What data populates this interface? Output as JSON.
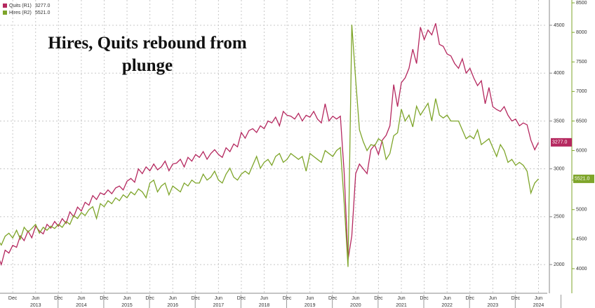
{
  "chart_data": {
    "type": "line",
    "title": "Hires, Quits rebound from plunge",
    "x": [
      "2012-07",
      "2012-08",
      "2012-09",
      "2012-10",
      "2012-11",
      "2012-12",
      "2013-01",
      "2013-02",
      "2013-03",
      "2013-04",
      "2013-05",
      "2013-06",
      "2013-07",
      "2013-08",
      "2013-09",
      "2013-10",
      "2013-11",
      "2013-12",
      "2014-01",
      "2014-02",
      "2014-03",
      "2014-04",
      "2014-05",
      "2014-06",
      "2014-07",
      "2014-08",
      "2014-09",
      "2014-10",
      "2014-11",
      "2014-12",
      "2015-01",
      "2015-02",
      "2015-03",
      "2015-04",
      "2015-05",
      "2015-06",
      "2015-07",
      "2015-08",
      "2015-09",
      "2015-10",
      "2015-11",
      "2015-12",
      "2016-01",
      "2016-02",
      "2016-03",
      "2016-04",
      "2016-05",
      "2016-06",
      "2016-07",
      "2016-08",
      "2016-09",
      "2016-10",
      "2016-11",
      "2016-12",
      "2017-01",
      "2017-02",
      "2017-03",
      "2017-04",
      "2017-05",
      "2017-06",
      "2017-07",
      "2017-08",
      "2017-09",
      "2017-10",
      "2017-11",
      "2017-12",
      "2018-01",
      "2018-02",
      "2018-03",
      "2018-04",
      "2018-05",
      "2018-06",
      "2018-07",
      "2018-08",
      "2018-09",
      "2018-10",
      "2018-11",
      "2018-12",
      "2019-01",
      "2019-02",
      "2019-03",
      "2019-04",
      "2019-05",
      "2019-06",
      "2019-07",
      "2019-08",
      "2019-09",
      "2019-10",
      "2019-11",
      "2019-12",
      "2020-01",
      "2020-02",
      "2020-03",
      "2020-04",
      "2020-05",
      "2020-06",
      "2020-07",
      "2020-08",
      "2020-09",
      "2020-10",
      "2020-11",
      "2020-12",
      "2021-01",
      "2021-02",
      "2021-03",
      "2021-04",
      "2021-05",
      "2021-06",
      "2021-07",
      "2021-08",
      "2021-09",
      "2021-10",
      "2021-11",
      "2021-12",
      "2022-01",
      "2022-02",
      "2022-03",
      "2022-04",
      "2022-05",
      "2022-06",
      "2022-07",
      "2022-08",
      "2022-09",
      "2022-10",
      "2022-11",
      "2022-12",
      "2023-01",
      "2023-02",
      "2023-03",
      "2023-04",
      "2023-05",
      "2023-06",
      "2023-07",
      "2023-08",
      "2023-09",
      "2023-10",
      "2023-11",
      "2023-12",
      "2024-01",
      "2024-02",
      "2024-03",
      "2024-04",
      "2024-05",
      "2024-06"
    ],
    "series": [
      {
        "name": "Quits (R1)",
        "color": "#b5285f",
        "last_label": "3277.0",
        "values": [
          2050,
          2100,
          2000,
          2150,
          2120,
          2200,
          2180,
          2300,
          2250,
          2350,
          2280,
          2400,
          2350,
          2320,
          2420,
          2380,
          2450,
          2400,
          2480,
          2430,
          2550,
          2500,
          2600,
          2560,
          2650,
          2620,
          2720,
          2680,
          2750,
          2730,
          2780,
          2740,
          2800,
          2820,
          2780,
          2870,
          2900,
          2860,
          3000,
          2950,
          3020,
          2980,
          3050,
          2990,
          3020,
          3080,
          2980,
          3050,
          3060,
          3100,
          3020,
          3120,
          3080,
          3150,
          3120,
          3180,
          3100,
          3160,
          3200,
          3150,
          3120,
          3220,
          3180,
          3260,
          3230,
          3380,
          3320,
          3400,
          3420,
          3380,
          3450,
          3420,
          3500,
          3480,
          3540,
          3450,
          3600,
          3560,
          3550,
          3520,
          3580,
          3500,
          3560,
          3540,
          3600,
          3520,
          3480,
          3680,
          3500,
          3550,
          3520,
          3550,
          2950,
          2050,
          2300,
          2950,
          3050,
          3000,
          2950,
          3200,
          3250,
          3150,
          3300,
          3350,
          3450,
          3880,
          3650,
          3900,
          3950,
          4050,
          4250,
          4100,
          4480,
          4350,
          4450,
          4400,
          4520,
          4300,
          4280,
          4200,
          4180,
          4100,
          4050,
          4150,
          4000,
          4050,
          3950,
          3870,
          3920,
          3680,
          3850,
          3650,
          3620,
          3600,
          3650,
          3560,
          3500,
          3520,
          3450,
          3480,
          3460,
          3300,
          3200,
          3277
        ]
      },
      {
        "name": "Hires (R2)",
        "color": "#7ea52a",
        "axis": "y2",
        "last_label": "5521.0",
        "values": [
          4450,
          4500,
          4400,
          4550,
          4600,
          4520,
          4650,
          4500,
          4700,
          4620,
          4680,
          4750,
          4600,
          4700,
          4650,
          4720,
          4680,
          4750,
          4700,
          4800,
          4750,
          4900,
          4850,
          4950,
          4900,
          5000,
          5050,
          4850,
          5100,
          5050,
          5150,
          5100,
          5200,
          5150,
          5250,
          5200,
          5300,
          5250,
          5350,
          5300,
          5200,
          5450,
          5500,
          5300,
          5400,
          5450,
          5250,
          5400,
          5350,
          5300,
          5450,
          5400,
          5500,
          5450,
          5450,
          5600,
          5500,
          5550,
          5650,
          5500,
          5450,
          5600,
          5700,
          5550,
          5500,
          5600,
          5650,
          5600,
          5750,
          5900,
          5700,
          5800,
          5850,
          5750,
          5900,
          5950,
          5800,
          5850,
          5950,
          5900,
          5850,
          5900,
          5650,
          5950,
          5900,
          5850,
          5800,
          6000,
          5950,
          5900,
          6000,
          6050,
          5100,
          4030,
          8130,
          7200,
          6350,
          6150,
          6000,
          6100,
          6080,
          6200,
          6150,
          5850,
          5950,
          6250,
          6300,
          6700,
          6500,
          6600,
          6400,
          6750,
          6600,
          6700,
          6800,
          6500,
          6880,
          6600,
          6550,
          6600,
          6500,
          6500,
          6500,
          6350,
          6200,
          6250,
          6200,
          6350,
          6100,
          6150,
          6200,
          6050,
          5900,
          6100,
          6000,
          5800,
          5850,
          5750,
          5800,
          5750,
          5650,
          5280,
          5450,
          5521
        ]
      }
    ],
    "ylim": [
      1700,
      4764
    ],
    "yticks": [
      2000,
      2500,
      3000,
      3500,
      4000,
      4500
    ],
    "y2lim": [
      3584,
      8548
    ],
    "y2ticks": [
      4000,
      4500,
      5000,
      5500,
      6000,
      6500,
      7000,
      7500,
      8000,
      8500
    ],
    "xticks": [
      {
        "value": "2012-12",
        "label": "Dec"
      },
      {
        "value": "2013-06",
        "label": "Jun"
      },
      {
        "value": "2013-12",
        "label": "Dec"
      },
      {
        "value": "2014-06",
        "label": "Jun"
      },
      {
        "value": "2014-12",
        "label": "Dec"
      },
      {
        "value": "2015-06",
        "label": "Jun"
      },
      {
        "value": "2015-12",
        "label": "Dec"
      },
      {
        "value": "2016-06",
        "label": "Jun"
      },
      {
        "value": "2016-12",
        "label": "Dec"
      },
      {
        "value": "2017-06",
        "label": "Jun"
      },
      {
        "value": "2017-12",
        "label": "Dec"
      },
      {
        "value": "2018-06",
        "label": "Jun"
      },
      {
        "value": "2018-12",
        "label": "Dec"
      },
      {
        "value": "2019-06",
        "label": "Jun"
      },
      {
        "value": "2019-12",
        "label": "Dec"
      },
      {
        "value": "2020-06",
        "label": "Jun"
      },
      {
        "value": "2020-12",
        "label": "Dec"
      },
      {
        "value": "2021-06",
        "label": "Jun"
      },
      {
        "value": "2021-12",
        "label": "Dec"
      },
      {
        "value": "2022-06",
        "label": "Jun"
      },
      {
        "value": "2022-12",
        "label": "Dec"
      },
      {
        "value": "2023-06",
        "label": "Jun"
      },
      {
        "value": "2023-12",
        "label": "Dec"
      },
      {
        "value": "2024-06",
        "label": "Jun"
      }
    ],
    "years": [
      2013,
      2014,
      2015,
      2016,
      2017,
      2018,
      2019,
      2020,
      2021,
      2022,
      2023,
      2024
    ],
    "grid": true
  }
}
